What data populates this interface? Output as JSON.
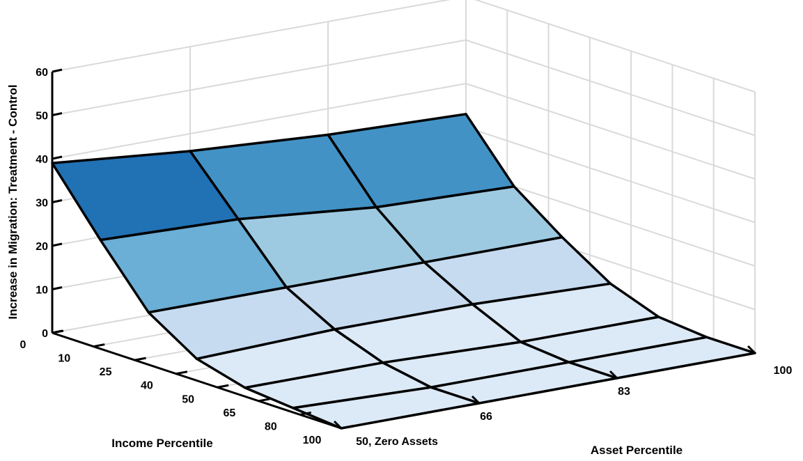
{
  "chart_data": {
    "type": "surface",
    "zlabel": "Increase in Migration: Treatment - Control",
    "xlabel": "Income Percentile",
    "ylabel": "Asset Percentile",
    "z_ticks": [
      "0",
      "10",
      "20",
      "30",
      "40",
      "50",
      "60"
    ],
    "zlim": [
      0,
      60
    ],
    "income_ticks": [
      "0",
      "10",
      "25",
      "40",
      "50",
      "65",
      "80",
      "100"
    ],
    "asset_ticks": [
      "50, Zero Assets",
      "66",
      "83",
      "100"
    ],
    "grid": true,
    "colors": [
      "#dce9f6",
      "#c6dbef",
      "#9ecae1",
      "#6baed6",
      "#4292c6",
      "#2171b5",
      "#08306b"
    ],
    "z_grid": [
      [
        39,
        36,
        34,
        33
      ],
      [
        25,
        24,
        21,
        20
      ],
      [
        12,
        12,
        12,
        12
      ],
      [
        5,
        6,
        6,
        5
      ],
      [
        2,
        2,
        1,
        1
      ],
      [
        1,
        0,
        0,
        0
      ],
      [
        0,
        0,
        0,
        0
      ]
    ]
  }
}
